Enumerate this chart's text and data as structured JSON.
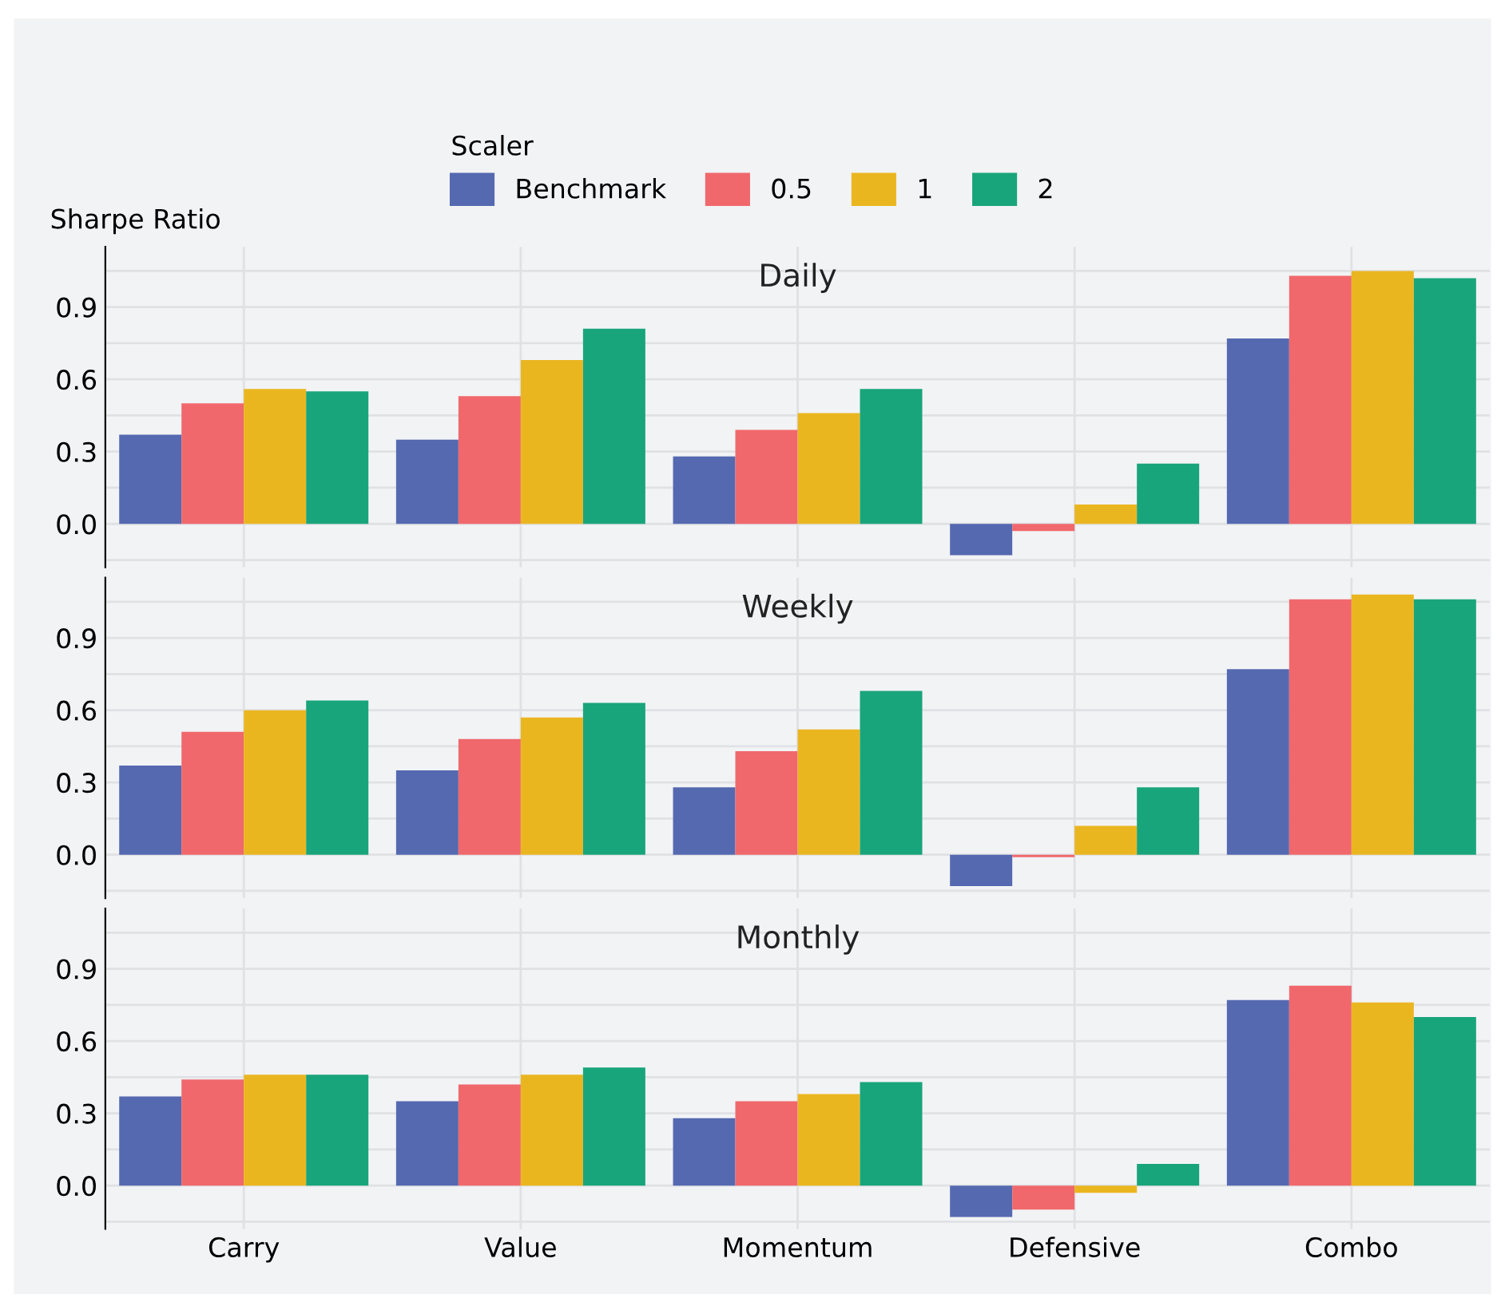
{
  "chart_data": [
    {
      "type": "bar",
      "title": "Daily",
      "ylabel": "Sharpe Ratio",
      "legend_title": "Scaler",
      "legend": "top",
      "grid": true,
      "tick_labels": "y",
      "categories": [
        null,
        null,
        null,
        null,
        null
      ],
      "ylim": [
        -0.18,
        1.15
      ],
      "yticks": [
        {
          "value": -0.15,
          "label": null
        },
        {
          "value": 0,
          "label": "0.0"
        },
        {
          "value": 0.15,
          "label": null
        },
        {
          "value": 0.3,
          "label": "0.3"
        },
        {
          "value": 0.45,
          "label": null
        },
        {
          "value": 0.6,
          "label": "0.6"
        },
        {
          "value": 0.75,
          "label": null
        },
        {
          "value": 0.9,
          "label": "0.9"
        },
        {
          "value": 1.05,
          "label": null
        }
      ],
      "series": [
        {
          "name": "Benchmark",
          "color": "#5569b0",
          "values": [
            0.37,
            0.35,
            0.28,
            -0.13,
            0.77
          ]
        },
        {
          "name": "0.5",
          "color": "#f0686c",
          "values": [
            0.5,
            0.53,
            0.39,
            -0.03,
            1.03
          ]
        },
        {
          "name": "1",
          "color": "#eab620",
          "values": [
            0.56,
            0.68,
            0.46,
            0.08,
            1.05
          ]
        },
        {
          "name": "2",
          "color": "#19a57b",
          "values": [
            0.55,
            0.81,
            0.56,
            0.25,
            1.02
          ]
        }
      ]
    },
    {
      "type": "bar",
      "title": "Weekly",
      "grid": true,
      "tick_labels": "y",
      "categories": [
        null,
        null,
        null,
        null,
        null
      ],
      "ylim": [
        -0.18,
        1.15
      ],
      "yticks": [
        {
          "value": -0.15,
          "label": null
        },
        {
          "value": 0,
          "label": "0.0"
        },
        {
          "value": 0.15,
          "label": null
        },
        {
          "value": 0.3,
          "label": "0.3"
        },
        {
          "value": 0.45,
          "label": null
        },
        {
          "value": 0.6,
          "label": "0.6"
        },
        {
          "value": 0.75,
          "label": null
        },
        {
          "value": 0.9,
          "label": "0.9"
        },
        {
          "value": 1.05,
          "label": null
        }
      ],
      "series": [
        {
          "name": "Benchmark",
          "color": "#5569b0",
          "values": [
            0.37,
            0.35,
            0.28,
            -0.13,
            0.77
          ]
        },
        {
          "name": "0.5",
          "color": "#f0686c",
          "values": [
            0.51,
            0.48,
            0.43,
            -0.01,
            1.06
          ]
        },
        {
          "name": "1",
          "color": "#eab620",
          "values": [
            0.6,
            0.57,
            0.52,
            0.12,
            1.08
          ]
        },
        {
          "name": "2",
          "color": "#19a57b",
          "values": [
            0.64,
            0.63,
            0.68,
            0.28,
            1.06
          ]
        }
      ]
    },
    {
      "type": "bar",
      "title": "Monthly",
      "grid": true,
      "categories": [
        "Carry",
        "Value",
        "Momentum",
        "Defensive",
        "Combo"
      ],
      "ylim": [
        -0.18,
        1.15
      ],
      "yticks": [
        {
          "value": -0.15,
          "label": null
        },
        {
          "value": 0,
          "label": "0.0"
        },
        {
          "value": 0.15,
          "label": null
        },
        {
          "value": 0.3,
          "label": "0.3"
        },
        {
          "value": 0.45,
          "label": null
        },
        {
          "value": 0.6,
          "label": "0.6"
        },
        {
          "value": 0.75,
          "label": null
        },
        {
          "value": 0.9,
          "label": "0.9"
        },
        {
          "value": 1.05,
          "label": null
        }
      ],
      "series": [
        {
          "name": "Benchmark",
          "color": "#5569b0",
          "values": [
            0.37,
            0.35,
            0.28,
            -0.13,
            0.77
          ]
        },
        {
          "name": "0.5",
          "color": "#f0686c",
          "values": [
            0.44,
            0.42,
            0.35,
            -0.1,
            0.83
          ]
        },
        {
          "name": "1",
          "color": "#eab620",
          "values": [
            0.46,
            0.46,
            0.38,
            -0.03,
            0.76
          ]
        },
        {
          "name": "2",
          "color": "#19a57b",
          "values": [
            0.46,
            0.49,
            0.43,
            0.09,
            0.7
          ]
        }
      ]
    }
  ]
}
